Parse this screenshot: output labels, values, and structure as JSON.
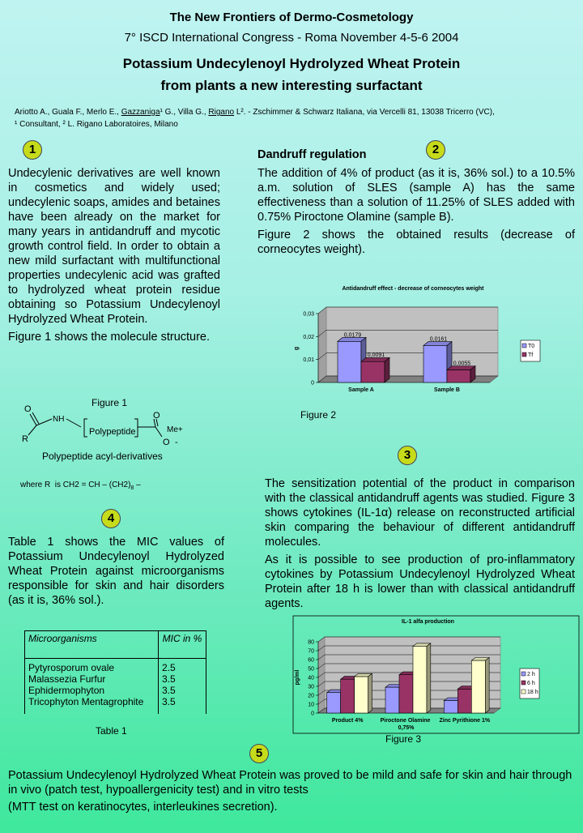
{
  "header": {
    "conference": "The New Frontiers of Dermo-Cosmetology",
    "congress": "7° ISCD International Congress - Roma November 4-5-6 2004",
    "title_line1": "Potassium Undecylenoyl Hydrolyzed Wheat Protein",
    "title_line2": "from plants a new interesting surfactant",
    "authors": [
      "Ariotto A., Guala F., Merlo E., ",
      "Gazzaniga",
      "¹ G., Villa G., ",
      "Rigano",
      " L². - Zschimmer & Schwarz Italiana, via Vercelli 81, 13038 Tricerro (VC),"
    ],
    "affiliations": "¹ Consultant, ² L. Rigano Laboratoires, Milano"
  },
  "section1": {
    "number": "1",
    "paragraphs": [
      "Undecylenic derivatives are well known in cosmetics and widely used; undecylenic soaps, amides and betaines have been already on the market for many years in antidandruff and mycotic growth control field. In order to obtain a new mild surfactant with multifunctional properties undecylenic acid was grafted to hydrolyzed wheat protein residue obtaining so Potassium Undecylenoyl Hydrolyzed Wheat Protein.",
      "Figure 1 shows the molecule structure."
    ],
    "figure_caption": "Figure 1",
    "molecule": {
      "o1": "O",
      "nh": "NH",
      "r": "R",
      "polypeptide": "Polypeptide",
      "o2": "O",
      "me": "Me+",
      "o3": "O",
      "minus": "-"
    },
    "molecule_caption": "Polypeptide acyl-derivatives",
    "formula": [
      "where R  is CH2 = CH – (CH2)",
      "8",
      " –"
    ]
  },
  "section2": {
    "number": "2",
    "heading": "Dandruff regulation",
    "paragraphs": [
      "The addition of 4% of product (as it is, 36% sol.) to a 10.5% a.m. solution of SLES (sample A) has the same effectiveness than a solution of 11.25% of SLES added with 0.75% Piroctone Olamine (sample B).",
      "Figure 2 shows the obtained results (decrease of corneocytes weight)."
    ],
    "figure_caption": "Figure 2"
  },
  "section3": {
    "number": "3",
    "paragraphs": [
      "The sensitization potential of the product in comparison with the classical antidandruff agents was studied. Figure 3 shows cytokines (IL-1α) release on reconstructed artificial skin comparing the behaviour of different antidandruff molecules.",
      "As it is possible to see production of pro-inflammatory cytokines by Potassium Undecylenoyl Hydrolyzed Wheat Protein after 18 h is lower than with classical antidandruff agents."
    ],
    "figure_caption": "Figure 3"
  },
  "section4": {
    "number": "4",
    "paragraph": "Table 1 shows the MIC values of Potassium Undecylenoyl Hydrolyzed Wheat Protein against microorganisms responsible for skin and hair disorders (as it is, 36% sol.).",
    "table": {
      "header": [
        "Microorganisms",
        "MIC in %"
      ],
      "rows": [
        [
          "Pytyrosporum ovale",
          2.5
        ],
        [
          "Malassezia Furfur",
          3.5
        ],
        [
          "Ephidermophyton",
          3.5
        ],
        [
          "Tricophyton Mentagrophite",
          3.5
        ]
      ]
    },
    "table_caption": "Table 1"
  },
  "section5": {
    "number": "5",
    "paragraphs": [
      "Potassium Undecylenoyl Hydrolyzed Wheat Protein was proved to be mild and safe for skin and hair  through in vivo (patch test, hypoallergenicity test)  and in vitro tests",
      "(MTT test on keratinocytes, interleukines secretion)."
    ]
  },
  "chart_data": [
    {
      "type": "bar",
      "title": "Antidandruff effect - decrease of corneocytes weight",
      "y_label": "g",
      "categories": [
        "Sample A",
        "Sample B"
      ],
      "series": [
        {
          "name": "T0",
          "color": "#9999ff",
          "values": [
            0.0179,
            0.0161
          ],
          "value_labels": [
            "0,0179",
            "0,0161"
          ]
        },
        {
          "name": "Tf",
          "color": "#993366",
          "values": [
            0.0091,
            0.0055
          ],
          "value_labels": [
            "0,0091",
            "0,0055"
          ]
        }
      ],
      "ylim": [
        0,
        0.03
      ],
      "yticks": [
        0,
        {
          "value": 0.01,
          "label": "0,01"
        },
        {
          "value": 0.02,
          "label": "0,02"
        },
        {
          "value": 0.03,
          "label": "0,03"
        }
      ],
      "grid": true
    },
    {
      "type": "bar",
      "title": "IL-1 alfa production",
      "y_label": "pg/ml",
      "categories": [
        "Product 4%",
        "Piroctone Olamine 0,75%",
        "Zinc Pyrithione 1%"
      ],
      "series": [
        {
          "name": "2 h",
          "color": "#9999ff",
          "values": [
            23,
            29,
            14
          ]
        },
        {
          "name": "6 h",
          "color": "#993366",
          "values": [
            38,
            43,
            27
          ]
        },
        {
          "name": "18 h",
          "color": "#ffffcc",
          "values": [
            41,
            75,
            59
          ]
        }
      ],
      "ylim": [
        0,
        80
      ],
      "yticks": [
        0,
        10,
        20,
        30,
        40,
        50,
        60,
        70,
        80
      ],
      "grid": true
    }
  ]
}
